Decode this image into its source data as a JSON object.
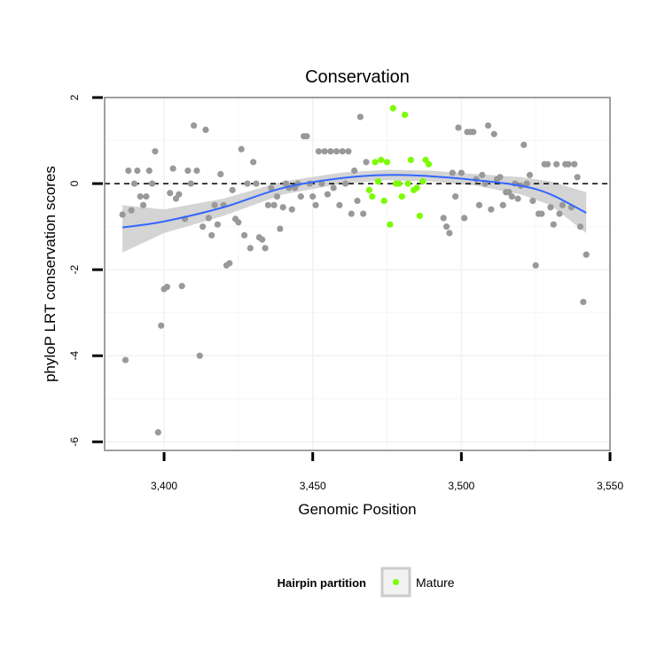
{
  "chart_data": {
    "type": "scatter",
    "title": "Conservation",
    "xlabel": "Genomic Position",
    "ylabel": "phyloP LRT conservation scores",
    "xlim": [
      3380,
      3550
    ],
    "ylim": [
      -6.2,
      2.0
    ],
    "x_ticks": [
      3400,
      3450,
      3500,
      3550
    ],
    "x_tick_labels": [
      "3,400",
      "3,450",
      "3,500",
      "3,550"
    ],
    "y_ticks": [
      -6,
      -4,
      -2,
      0,
      2
    ],
    "y_tick_labels": [
      "-6",
      "-4",
      "-2",
      "0",
      "2"
    ],
    "grid": true,
    "reference_line_y": 0,
    "colors": {
      "other": "#999999",
      "mature": "#7cfc00",
      "smooth": "#3366ff",
      "band": "#cccccc"
    },
    "legend": {
      "title": "Hairpin partition",
      "position": "bottom",
      "items": [
        {
          "label": "Mature",
          "color": "#7cfc00"
        }
      ]
    },
    "series": [
      {
        "group": "other",
        "points": [
          [
            3386,
            -0.72
          ],
          [
            3387,
            -4.1
          ],
          [
            3388,
            0.3
          ],
          [
            3389,
            -0.62
          ],
          [
            3390,
            0.0
          ],
          [
            3391,
            0.3
          ],
          [
            3392,
            -0.3
          ],
          [
            3393,
            -0.5
          ],
          [
            3394,
            -0.3
          ],
          [
            3395,
            0.3
          ],
          [
            3396,
            0.0
          ],
          [
            3397,
            0.75
          ],
          [
            3398,
            -5.78
          ],
          [
            3399,
            -3.3
          ],
          [
            3400,
            -2.45
          ],
          [
            3401,
            -2.4
          ],
          [
            3402,
            -0.22
          ],
          [
            3403,
            0.35
          ],
          [
            3404,
            -0.35
          ],
          [
            3405,
            -0.25
          ],
          [
            3406,
            -2.38
          ],
          [
            3407,
            -0.82
          ],
          [
            3408,
            0.3
          ],
          [
            3409,
            0.0
          ],
          [
            3410,
            1.35
          ],
          [
            3411,
            0.3
          ],
          [
            3412,
            -4.0
          ],
          [
            3413,
            -1.0
          ],
          [
            3414,
            1.25
          ],
          [
            3415,
            -0.8
          ],
          [
            3416,
            -1.2
          ],
          [
            3417,
            -0.5
          ],
          [
            3418,
            -0.95
          ],
          [
            3419,
            0.22
          ],
          [
            3420,
            -0.5
          ],
          [
            3421,
            -1.9
          ],
          [
            3422,
            -1.85
          ],
          [
            3423,
            -0.15
          ],
          [
            3424,
            -0.82
          ],
          [
            3425,
            -0.9
          ],
          [
            3426,
            0.8
          ],
          [
            3427,
            -1.2
          ],
          [
            3428,
            0.0
          ],
          [
            3429,
            -1.5
          ],
          [
            3430,
            0.5
          ],
          [
            3431,
            0.0
          ],
          [
            3432,
            -1.25
          ],
          [
            3433,
            -1.3
          ],
          [
            3434,
            -1.5
          ],
          [
            3435,
            -0.5
          ],
          [
            3436,
            -0.1
          ],
          [
            3437,
            -0.5
          ],
          [
            3438,
            -0.3
          ],
          [
            3439,
            -1.05
          ],
          [
            3440,
            -0.55
          ],
          [
            3441,
            0.0
          ],
          [
            3442,
            -0.1
          ],
          [
            3443,
            -0.6
          ],
          [
            3444,
            -0.1
          ],
          [
            3445,
            0.0
          ],
          [
            3446,
            -0.3
          ],
          [
            3447,
            1.1
          ],
          [
            3448,
            1.1
          ],
          [
            3449,
            0.0
          ],
          [
            3450,
            -0.3
          ],
          [
            3451,
            -0.5
          ],
          [
            3452,
            0.75
          ],
          [
            3453,
            0.0
          ],
          [
            3454,
            0.75
          ],
          [
            3455,
            -0.25
          ],
          [
            3456,
            0.75
          ],
          [
            3457,
            -0.1
          ],
          [
            3458,
            0.75
          ],
          [
            3459,
            -0.5
          ],
          [
            3460,
            0.75
          ],
          [
            3461,
            0.0
          ],
          [
            3462,
            0.75
          ],
          [
            3463,
            -0.7
          ],
          [
            3464,
            0.3
          ],
          [
            3465,
            -0.4
          ],
          [
            3466,
            1.55
          ],
          [
            3467,
            -0.7
          ],
          [
            3468,
            0.5
          ],
          [
            3494,
            -0.8
          ],
          [
            3495,
            -1.0
          ],
          [
            3496,
            -1.15
          ],
          [
            3497,
            0.25
          ],
          [
            3498,
            -0.3
          ],
          [
            3499,
            1.3
          ],
          [
            3500,
            0.25
          ],
          [
            3501,
            -0.8
          ],
          [
            3502,
            1.2
          ],
          [
            3503,
            1.2
          ],
          [
            3504,
            1.2
          ],
          [
            3505,
            0.1
          ],
          [
            3506,
            -0.5
          ],
          [
            3507,
            0.2
          ],
          [
            3508,
            0.0
          ],
          [
            3509,
            1.35
          ],
          [
            3510,
            -0.6
          ],
          [
            3511,
            1.15
          ],
          [
            3512,
            0.1
          ],
          [
            3513,
            0.15
          ],
          [
            3514,
            -0.5
          ],
          [
            3515,
            -0.2
          ],
          [
            3516,
            -0.2
          ],
          [
            3517,
            -0.3
          ],
          [
            3518,
            0.0
          ],
          [
            3519,
            -0.35
          ],
          [
            3520,
            -0.05
          ],
          [
            3521,
            0.9
          ],
          [
            3522,
            0.0
          ],
          [
            3523,
            0.2
          ],
          [
            3524,
            -0.4
          ],
          [
            3525,
            -1.9
          ],
          [
            3526,
            -0.7
          ],
          [
            3527,
            -0.7
          ],
          [
            3528,
            0.45
          ],
          [
            3529,
            0.45
          ],
          [
            3530,
            -0.55
          ],
          [
            3531,
            -0.95
          ],
          [
            3532,
            0.45
          ],
          [
            3533,
            -0.7
          ],
          [
            3534,
            -0.5
          ],
          [
            3535,
            0.45
          ],
          [
            3536,
            0.45
          ],
          [
            3537,
            -0.55
          ],
          [
            3538,
            0.45
          ],
          [
            3539,
            0.15
          ],
          [
            3540,
            -1.0
          ],
          [
            3541,
            -2.75
          ],
          [
            3542,
            -1.65
          ]
        ]
      },
      {
        "group": "mature",
        "points": [
          [
            3469,
            -0.15
          ],
          [
            3470,
            -0.3
          ],
          [
            3471,
            0.5
          ],
          [
            3472,
            0.05
          ],
          [
            3473,
            0.55
          ],
          [
            3474,
            -0.4
          ],
          [
            3475,
            0.5
          ],
          [
            3476,
            -0.95
          ],
          [
            3477,
            1.75
          ],
          [
            3478,
            0.0
          ],
          [
            3479,
            0.0
          ],
          [
            3480,
            -0.3
          ],
          [
            3481,
            1.6
          ],
          [
            3482,
            0.0
          ],
          [
            3483,
            0.55
          ],
          [
            3484,
            -0.15
          ],
          [
            3485,
            -0.1
          ],
          [
            3486,
            -0.75
          ],
          [
            3487,
            0.05
          ],
          [
            3488,
            0.55
          ],
          [
            3489,
            0.45
          ]
        ]
      }
    ],
    "smooth": {
      "x": [
        3386,
        3400,
        3420,
        3440,
        3460,
        3475,
        3490,
        3505,
        3520,
        3530,
        3542
      ],
      "y": [
        -1.02,
        -0.88,
        -0.55,
        -0.1,
        0.13,
        0.2,
        0.17,
        0.08,
        -0.05,
        -0.25,
        -0.68
      ],
      "lower": [
        -1.6,
        -1.15,
        -0.75,
        -0.25,
        0.0,
        0.08,
        0.05,
        -0.05,
        -0.25,
        -0.5,
        -1.15
      ],
      "upper": [
        -0.5,
        -0.6,
        -0.35,
        0.05,
        0.26,
        0.32,
        0.3,
        0.22,
        0.15,
        0.05,
        -0.2
      ]
    }
  }
}
